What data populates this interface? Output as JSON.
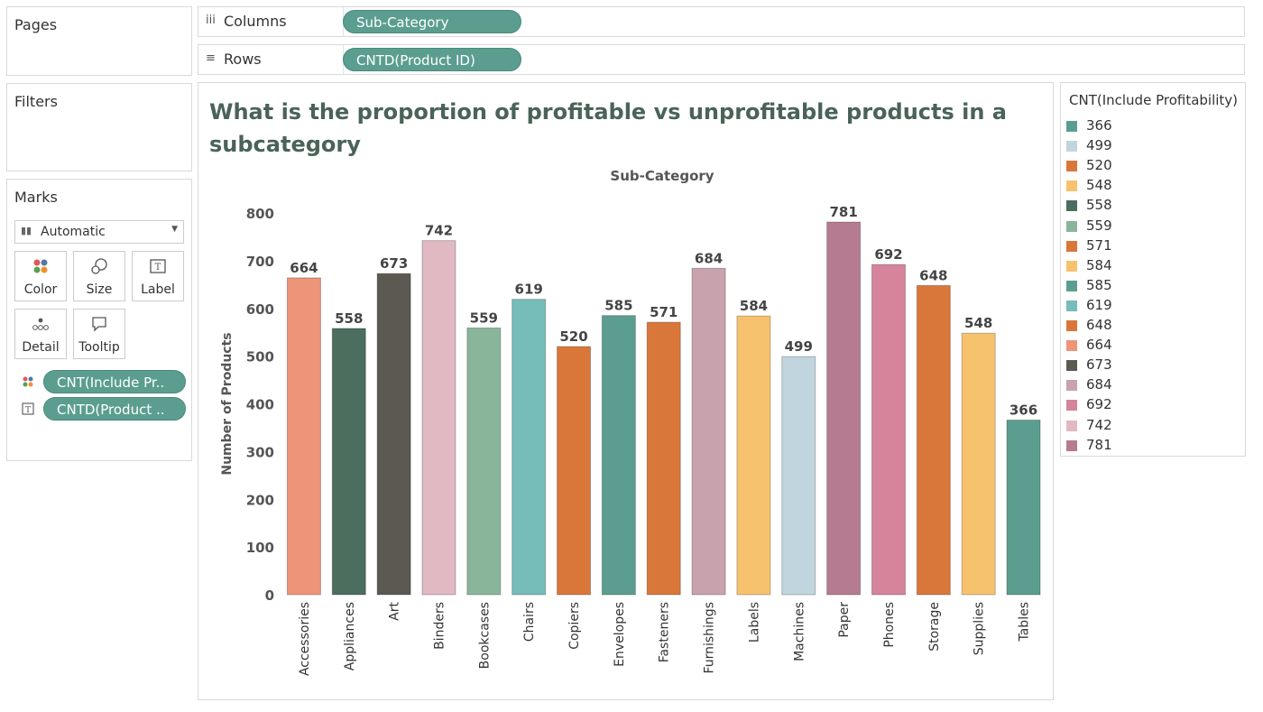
{
  "panels": {
    "pages_title": "Pages",
    "filters_title": "Filters",
    "marks_title": "Marks"
  },
  "shelves": {
    "columns_label": "Columns",
    "columns_icon": "iii",
    "columns_pill": "Sub-Category",
    "rows_label": "Rows",
    "rows_icon": "≡",
    "rows_pill": "CNTD(Product ID)"
  },
  "marks": {
    "type_selected": "Automatic",
    "buttons": {
      "color": "Color",
      "size": "Size",
      "label": "Label",
      "detail": "Detail",
      "tooltip": "Tooltip"
    },
    "color_field": "CNT(Include Pr..",
    "label_field": "CNTD(Product .."
  },
  "legend": {
    "title": "CNT(Include Profitability)",
    "items": [
      {
        "label": "366",
        "color": "#5b9e8f"
      },
      {
        "label": "499",
        "color": "#c1d5de"
      },
      {
        "label": "520",
        "color": "#d9773a"
      },
      {
        "label": "548",
        "color": "#f6c26e"
      },
      {
        "label": "558",
        "color": "#4b6e5e"
      },
      {
        "label": "559",
        "color": "#89b69a"
      },
      {
        "label": "571",
        "color": "#d9773a"
      },
      {
        "label": "584",
        "color": "#f6c26e"
      },
      {
        "label": "585",
        "color": "#5b9e8f"
      },
      {
        "label": "619",
        "color": "#76bcb9"
      },
      {
        "label": "648",
        "color": "#d9773a"
      },
      {
        "label": "664",
        "color": "#ee9478"
      },
      {
        "label": "673",
        "color": "#5c5953"
      },
      {
        "label": "684",
        "color": "#c8a2ad"
      },
      {
        "label": "692",
        "color": "#d5849c"
      },
      {
        "label": "742",
        "color": "#e1b9c3"
      },
      {
        "label": "781",
        "color": "#b57b90"
      }
    ]
  },
  "chart_data": {
    "type": "bar",
    "title": "What is the proportion of profitable vs unprofitable products in a subcategory",
    "column_header": "Sub-Category",
    "ylabel": "Number of Products",
    "ylim": [
      0,
      800
    ],
    "yticks": [
      "0",
      "100",
      "200",
      "300",
      "400",
      "500",
      "600",
      "700",
      "800"
    ],
    "grid": false,
    "legend_position": "right",
    "categories": [
      "Accessories",
      "Appliances",
      "Art",
      "Binders",
      "Bookcases",
      "Chairs",
      "Copiers",
      "Envelopes",
      "Fasteners",
      "Furnishings",
      "Labels",
      "Machines",
      "Paper",
      "Phones",
      "Storage",
      "Supplies",
      "Tables"
    ],
    "values": [
      664,
      558,
      673,
      742,
      559,
      619,
      520,
      585,
      571,
      684,
      584,
      499,
      781,
      692,
      648,
      548,
      366
    ],
    "value_labels": [
      "664",
      "558",
      "673",
      "742",
      "559",
      "619",
      "520",
      "585",
      "571",
      "684",
      "584",
      "499",
      "781",
      "692",
      "648",
      "548",
      "366"
    ],
    "colors": [
      "#ee9478",
      "#4b6e5e",
      "#5c5953",
      "#e1b9c3",
      "#89b69a",
      "#76bcb9",
      "#d9773a",
      "#5b9e8f",
      "#d9773a",
      "#c8a2ad",
      "#f6c26e",
      "#c1d5de",
      "#b57b90",
      "#d5849c",
      "#d9773a",
      "#f6c26e",
      "#5b9e8f"
    ]
  }
}
